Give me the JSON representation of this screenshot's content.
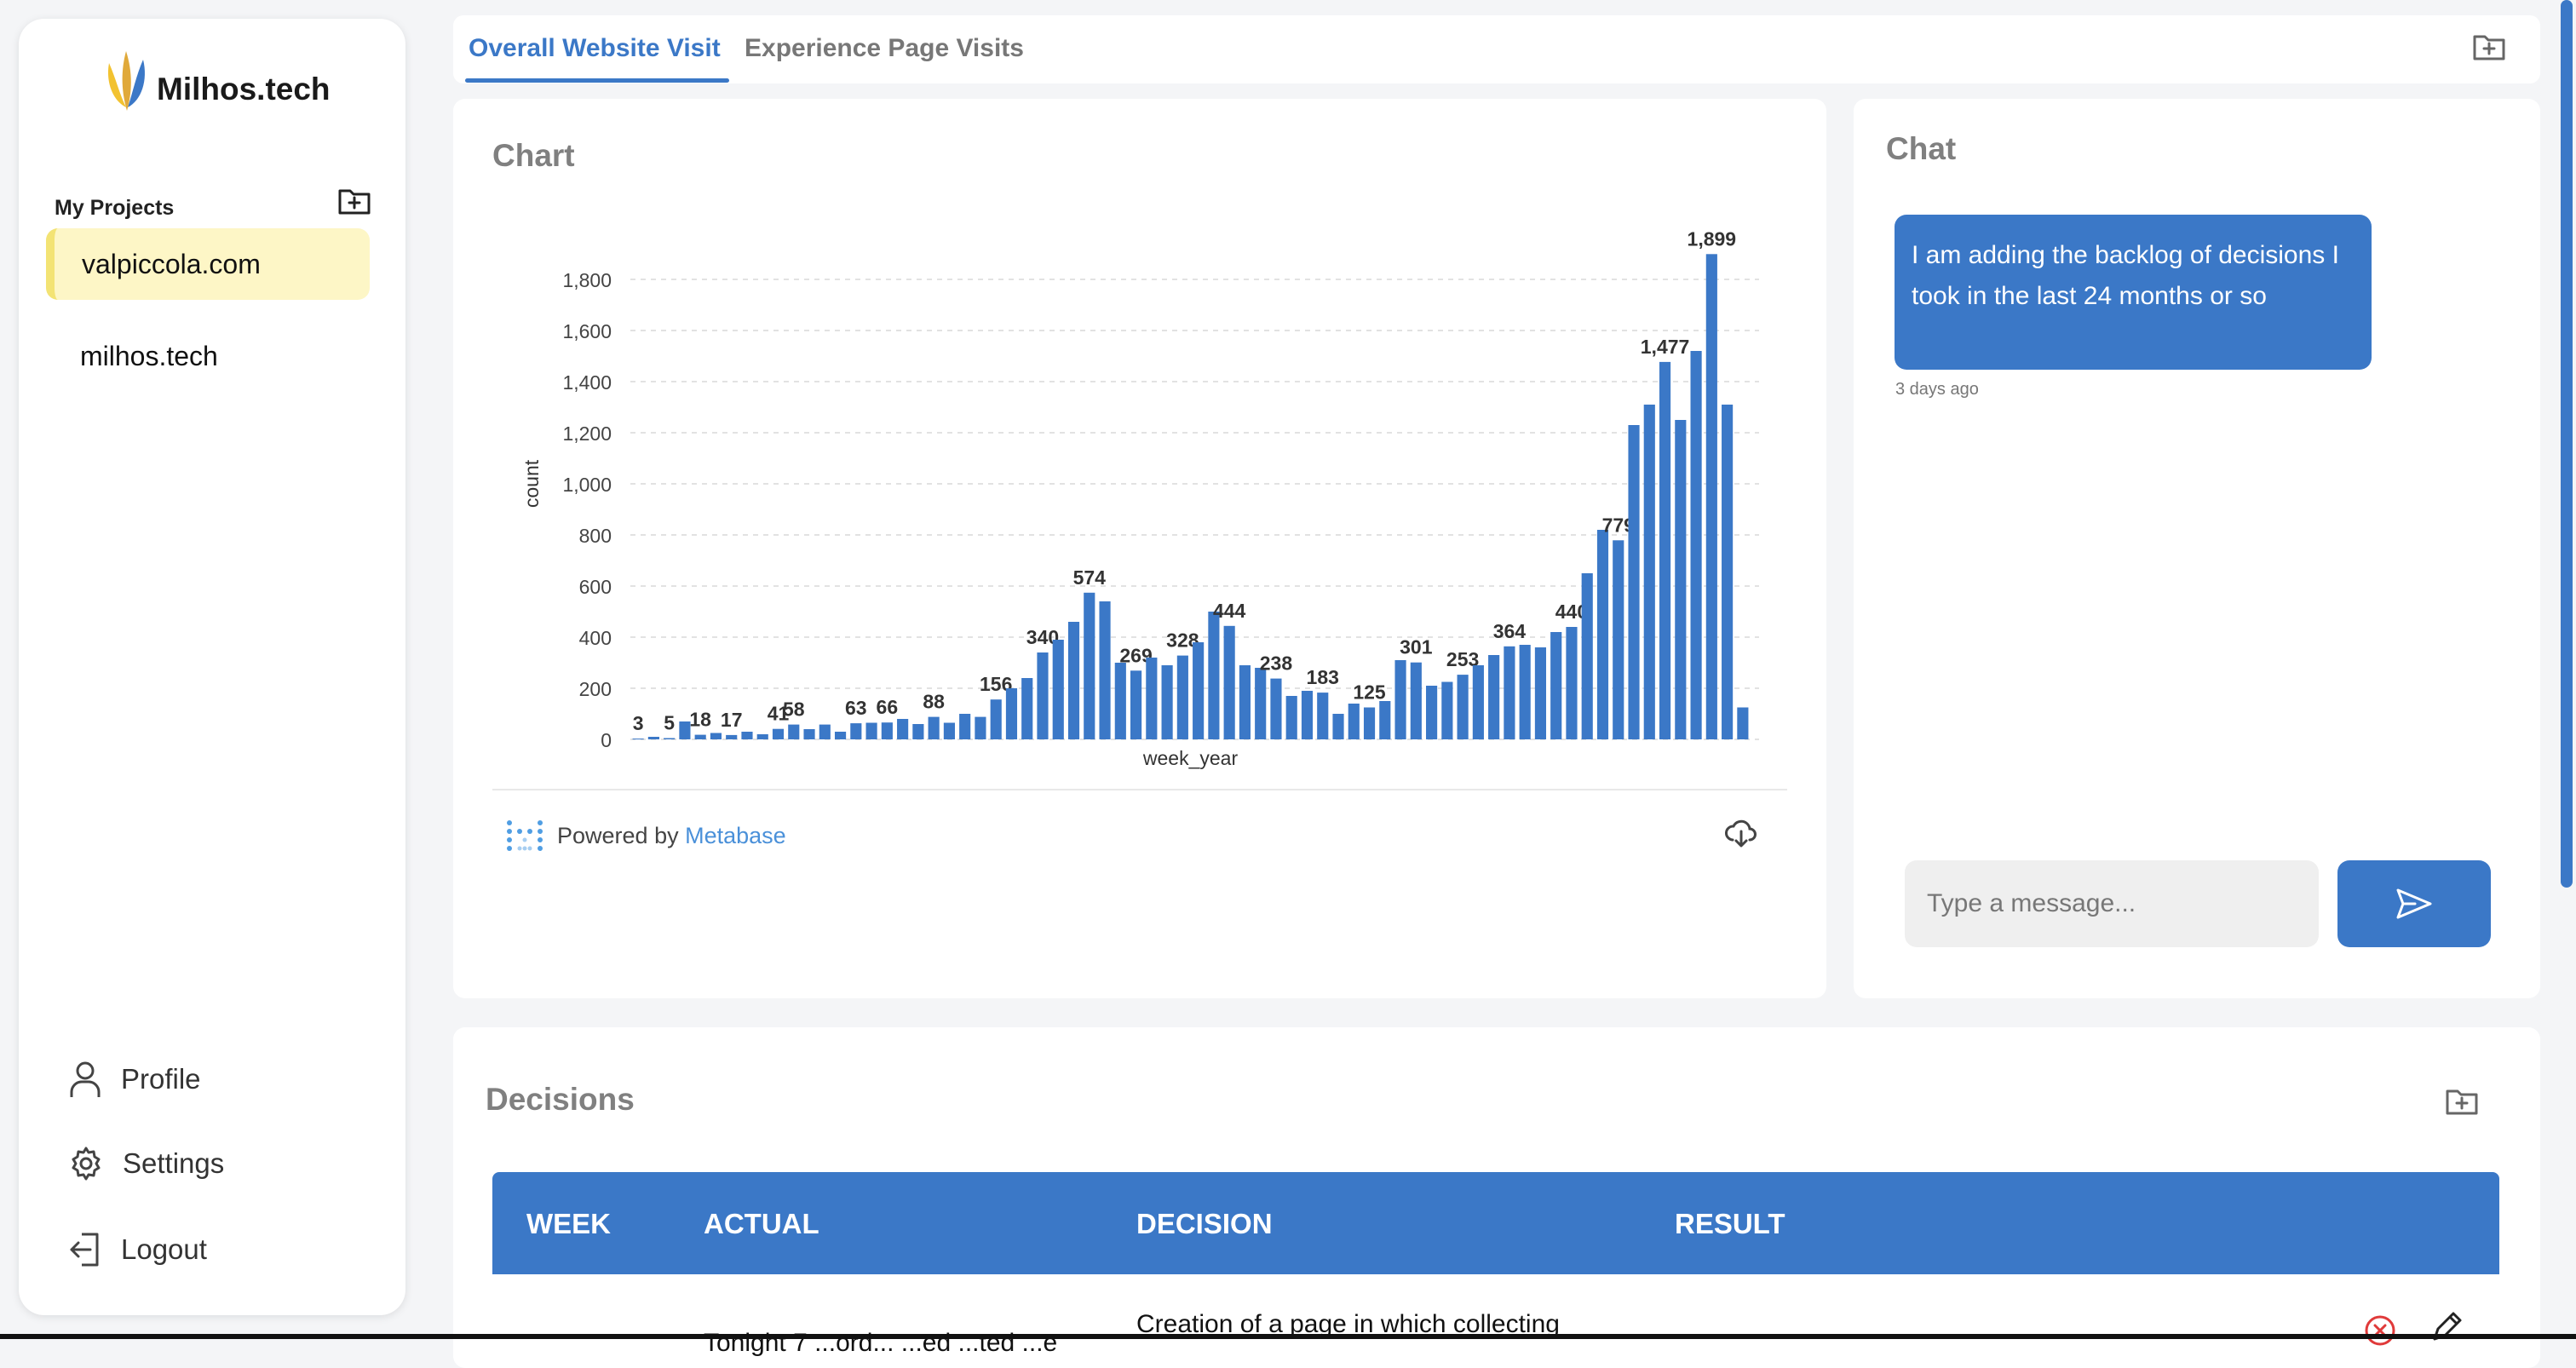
{
  "sidebar": {
    "brand": "Milhos.tech",
    "projects_title": "My Projects",
    "projects": [
      "valpiccola.com",
      "milhos.tech"
    ],
    "active_project": "valpiccola.com",
    "links": {
      "profile": "Profile",
      "settings": "Settings",
      "logout": "Logout"
    }
  },
  "tabs": {
    "items": [
      "Overall Website Visit",
      "Experience Page Visits"
    ],
    "active": "Overall Website Visit"
  },
  "chart_panel": {
    "title": "Chart",
    "powered_by": "Powered by",
    "powered_brand": "Metabase"
  },
  "chart_data": {
    "type": "bar",
    "title": "",
    "xlabel": "week_year",
    "ylabel": "count",
    "ylim": [
      0,
      2000
    ],
    "yticks": [
      0,
      200,
      400,
      600,
      800,
      1000,
      1200,
      1400,
      1600,
      1800
    ],
    "ytick_labels": [
      "0",
      "200",
      "400",
      "600",
      "800",
      "1,000",
      "1,200",
      "1,400",
      "1,600",
      "1,800"
    ],
    "grid": true,
    "values": [
      3,
      10,
      5,
      70,
      18,
      25,
      17,
      30,
      20,
      41,
      58,
      40,
      58,
      30,
      63,
      65,
      66,
      80,
      60,
      88,
      65,
      100,
      88,
      156,
      200,
      240,
      340,
      390,
      460,
      574,
      540,
      300,
      269,
      320,
      290,
      328,
      380,
      500,
      444,
      290,
      280,
      238,
      170,
      190,
      183,
      100,
      140,
      125,
      150,
      310,
      301,
      210,
      225,
      253,
      290,
      330,
      364,
      370,
      360,
      420,
      440,
      650,
      820,
      779,
      1230,
      1310,
      1477,
      1250,
      1520,
      1899,
      1310,
      125
    ],
    "labels": {
      "0": "3",
      "2": "5",
      "4": "18",
      "6": "17",
      "9": "41",
      "10": "58",
      "14": "63",
      "16": "66",
      "19": "88",
      "23": "156",
      "26": "340",
      "29": "574",
      "32": "269",
      "35": "328",
      "38": "444",
      "41": "238",
      "44": "183",
      "47": "125",
      "50": "301",
      "53": "253",
      "56": "364",
      "60": "440",
      "63": "779",
      "66": "1,477",
      "69": "1,899"
    }
  },
  "chat": {
    "title": "Chat",
    "message": "I am adding the backlog of decisions I took in the last 24 months or so",
    "timestamp": "3 days ago",
    "input_placeholder": "Type a message..."
  },
  "decisions": {
    "title": "Decisions",
    "columns": {
      "week": "WEEK",
      "actual": "ACTUAL",
      "decision": "DECISION",
      "result": "RESULT"
    },
    "rows": [
      {
        "actual": "Tonight 7 ...ord... ...ed ...ted ...e",
        "decision": "Creation of a page in which collecting"
      }
    ]
  },
  "colors": {
    "accent": "#3b78c7",
    "active_project_bg": "#fdf6c6",
    "bar": "#3b78c7"
  }
}
